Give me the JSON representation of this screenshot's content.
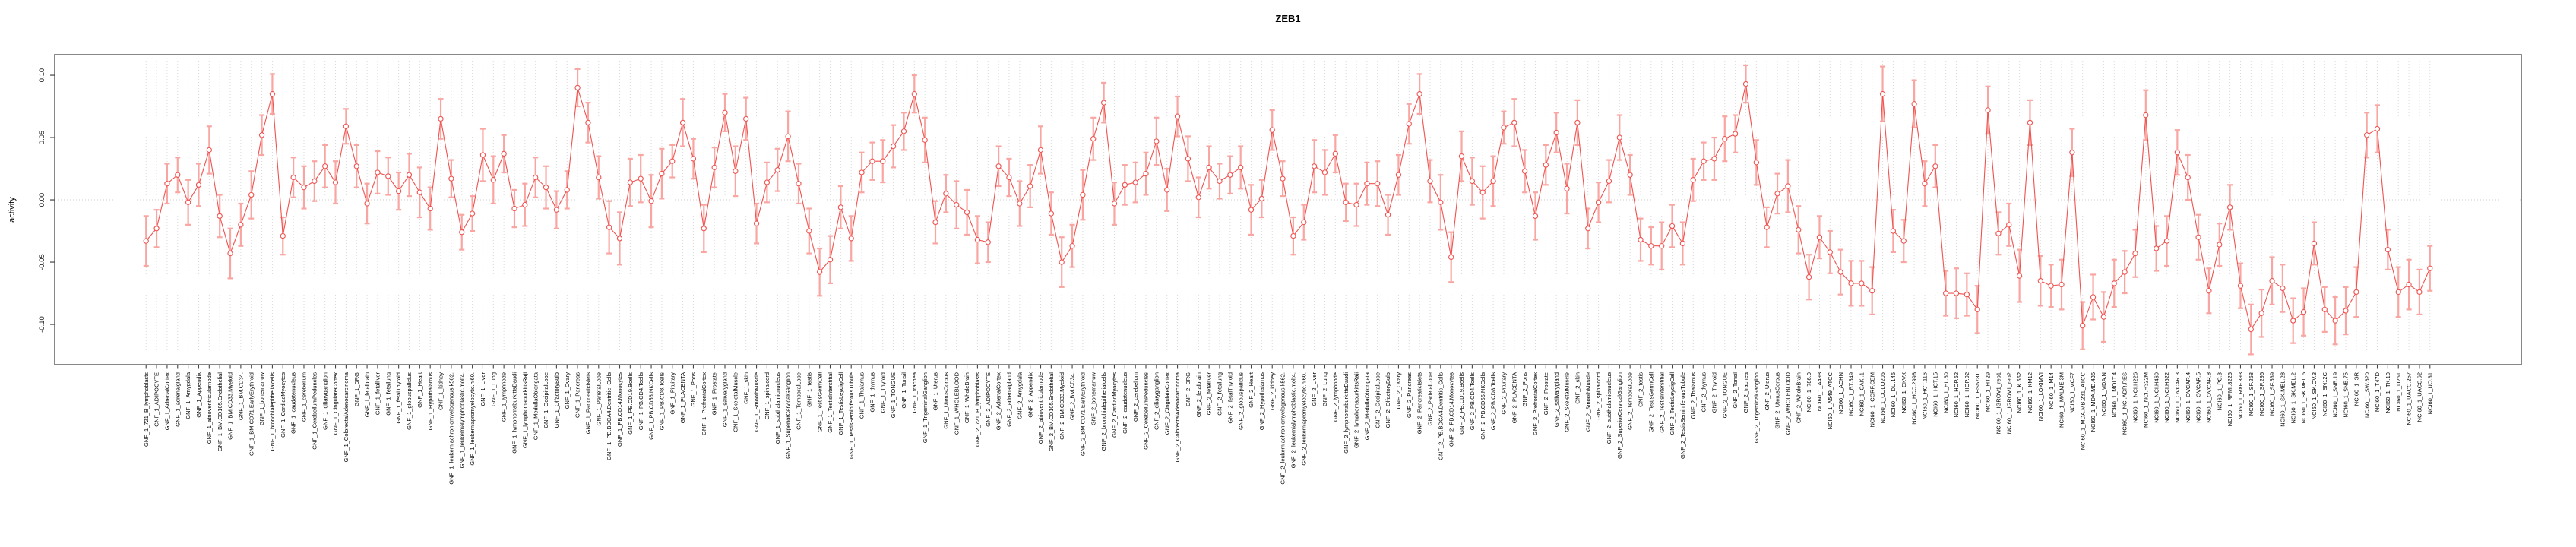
{
  "title": "ZEB1",
  "chart_data": {
    "type": "line",
    "title": "ZEB1",
    "ylabel": "activity",
    "xlabel": "",
    "ylim": [
      -0.1323,
      0.1165
    ],
    "yticks": [
      -0.1,
      -0.05,
      0.0,
      0.05,
      0.1
    ],
    "ytick_labels": [
      "-0.10",
      "-0.05",
      "0.00",
      "0.05",
      "0.10"
    ],
    "legend": "none",
    "grid": "vertical dotted gridline at every category; horizontal dotted line at 0",
    "marker": "open-circle",
    "error_bars": true,
    "colors": {
      "series": "#ef5350",
      "error_bar": "#f9a6a2",
      "grid_line": "#d9d9d9",
      "zero_line": "#cccccc",
      "box_border": "#7a7a7a",
      "tick_text": "#1a1a1a"
    },
    "x_groups": [
      {
        "prefix": "GNF_1_",
        "names": [
          "721_B_lymphoblasts",
          "ADIPOCYTE",
          "AdrenalCortex",
          "adrenalgland",
          "Amygdala",
          "Appendix",
          "atrioventricularnode",
          "BM.CD105.Endothelial",
          "BM.CD33.Myeloid",
          "BM.CD34.",
          "BM.CD71.EarlyErythroid",
          "bonemarrow",
          "bronchialepithelialcells",
          "CardiacMyocytes",
          "caudatenucleus",
          "cerebellum",
          "CerebellumPeduncles",
          "ciliaryganglion",
          "CingulateCortex",
          "ColorectalAdenocarcinoma",
          "DRG",
          "fetalbrain",
          "fetalliver",
          "fetallung",
          "fetalThyroid",
          "globuspallidus",
          "Heart",
          "Hypothalamus",
          "kidney",
          "leukemiachronicmyelogenous.k562.",
          "leukemialymphoblastic.molt4.",
          "leukemiapromyelocytic.hl60.",
          "Liver",
          "Lung",
          "lymphnode",
          "lymphomaburkittsDaudi",
          "lymphomaburkittsRaji",
          "MedullaOblongata",
          "OccipitalLobe",
          "OlfactoryBulb",
          "Ovary",
          "Pancreas",
          "PancreaticIslets",
          "ParietalLobe",
          "PB.BDCA4.Dentritic_Cells",
          "PB.CD14.Monocytes",
          "PB.CD19.Bcells",
          "PB.CD4.Tcells",
          "PB.CD56.NKCells",
          "PB.CD8.Tcells",
          "Pituitary",
          "PLACENTA",
          "Pons",
          "PrefrontalCortex",
          "Prostate",
          "salivarygland",
          "SkeletalMuscle",
          "skin",
          "SmoothMuscle",
          "spinalcord",
          "subthalamicnucleus",
          "SuperiorCervicalGanglion",
          "TemporalLobe",
          "testis",
          "TestisGermCell",
          "TestisInterstitial",
          "TestisLeydigCell",
          "TestisSeminiferousTubule",
          "Thalamus",
          "thymus",
          "Thyroid",
          "TONGUE",
          "Tonsil",
          "trachea",
          "TrigeminalGanglion",
          "Uterus",
          "UterusCorpus",
          "WHOLEBLOOD",
          "WholeBrain"
        ]
      },
      {
        "prefix": "GNF_2_",
        "names": [
          "721_B_lymphoblasts",
          "ADIPOCYTE",
          "AdrenalCortex",
          "adrenalgland",
          "Amygdala",
          "Appendix",
          "atrioventricularnode",
          "BM.CD105.Endothelial",
          "BM.CD33.Myeloid",
          "BM.CD34.",
          "BM.CD71.EarlyErythroid",
          "bonemarrow",
          "bronchialepithelialcells",
          "CardiacMyocytes",
          "caudatenucleus",
          "cerebellum",
          "CerebellumPeduncles",
          "ciliaryganglion",
          "CingulateCortex",
          "ColorectalAdenocarcinoma",
          "DRG",
          "fetalbrain",
          "fetalliver",
          "fetallung",
          "fetalThyroid",
          "globuspallidus",
          "Heart",
          "Hypothalamus",
          "kidney",
          "leukemiachronicmyelogenous.k562.",
          "leukemialymphoblastic.molt4.",
          "leukemiapromyelocytic.hl60.",
          "Liver",
          "Lung",
          "lymphnode",
          "lymphomaburkittsDaudi",
          "lymphomaburkittsRaji",
          "MedullaOblongata",
          "OccipitalLobe",
          "OlfactoryBulb",
          "Ovary",
          "Pancreas",
          "PancreaticIslets",
          "ParietalLobe",
          "PB.BDCA4.Dentritic_Cells",
          "PB.CD14.Monocytes",
          "PB.CD19.Bcells",
          "PB.CD4.Tcells",
          "PB.CD56.NKCells",
          "PB.CD8.Tcells",
          "Pituitary",
          "PLACENTA",
          "Pons",
          "PrefrontalCortex",
          "Prostate",
          "salivarygland",
          "SkeletalMuscle",
          "skin",
          "SmoothMuscle",
          "spinalcord",
          "subthalamicnucleus",
          "SuperiorCervicalGanglion",
          "TemporalLobe",
          "testis",
          "TestisGermCell",
          "TestisInterstitial",
          "TestisLeydigCell",
          "TestisSeminiferousTubule",
          "Thalamus",
          "thymus",
          "Thyroid",
          "TONGUE",
          "Tonsil",
          "trachea",
          "TrigeminalGanglion",
          "Uterus",
          "UterusCorpus",
          "WHOLEBLOOD",
          "WholeBrain"
        ]
      },
      {
        "prefix": "NCI60_1_",
        "names": [
          "786.0",
          "A498",
          "A549_ATCC",
          "ACHN",
          "BT.549",
          "CAKI.1",
          "CCRF.CEM",
          "COLO205",
          "DU.145",
          "EKVX",
          "HCC.2998",
          "HCT.116",
          "HCT.15",
          "HL.60",
          "HOP.62",
          "HOP.92",
          "HS578T",
          "HT29",
          "IGROV1_rep1",
          "IGROV1_rep2",
          "K.562",
          "KM12",
          "LOXIMVI",
          "M14",
          "MALME.3M",
          "MCF7",
          "MDA.MB.231_ATCC",
          "MDA.MB.435",
          "MDA.N",
          "MOLT.4",
          "NCI.ADR.RES",
          "NCI.H226",
          "NCI.H322M",
          "NCI.H460",
          "NCI.H522",
          "OVCAR.3",
          "OVCAR.4",
          "OVCAR.5",
          "OVCAR.8",
          "PC.3",
          "RPMI.8226",
          "RXF.393",
          "SF.268",
          "SF.295",
          "SF.539",
          "SK.MEL.28",
          "SK.MEL.2",
          "SK.MEL.5",
          "SK.OV.3",
          "SN12C",
          "SNB.19",
          "SNB.75",
          "SR",
          "SW.620",
          "T47D",
          "TK.10",
          "U251",
          "UACC.257",
          "UACC.62",
          "UO.31"
        ]
      }
    ],
    "values": [
      -0.033,
      -0.023,
      0.013,
      0.02,
      -0.002,
      0.012,
      0.04,
      -0.013,
      -0.043,
      -0.02,
      0.004,
      0.052,
      0.085,
      -0.029,
      0.018,
      0.01,
      0.015,
      0.027,
      0.014,
      0.059,
      0.027,
      -0.003,
      0.022,
      0.019,
      0.007,
      0.02,
      0.006,
      -0.007,
      0.065,
      0.017,
      -0.026,
      -0.011,
      0.036,
      0.016,
      0.037,
      -0.007,
      -0.004,
      0.018,
      0.01,
      -0.008,
      0.008,
      0.09,
      0.062,
      0.018,
      -0.022,
      -0.031,
      0.014,
      0.017,
      -0.001,
      0.021,
      0.031,
      0.062,
      0.033,
      -0.023,
      0.026,
      0.07,
      0.023,
      0.065,
      -0.019,
      0.014,
      0.024,
      0.051,
      0.013,
      -0.025,
      -0.058,
      -0.048,
      -0.006,
      -0.031,
      0.022,
      0.031,
      0.031,
      0.043,
      0.055,
      0.085,
      0.048,
      -0.018,
      0.005,
      -0.004,
      -0.01,
      -0.032,
      -0.034,
      0.027,
      0.018,
      -0.003,
      0.011,
      0.04,
      -0.011,
      -0.05,
      -0.037,
      0.004,
      0.049,
      0.078,
      -0.003,
      0.012,
      0.014,
      0.021,
      0.047,
      0.008,
      0.067,
      0.033,
      0.002,
      0.026,
      0.015,
      0.02,
      0.026,
      -0.008,
      0.001,
      0.056,
      0.017,
      -0.029,
      -0.018,
      0.027,
      0.022,
      0.037,
      -0.002,
      -0.004,
      0.013,
      0.013,
      -0.012,
      0.02,
      0.061,
      0.085,
      0.015,
      -0.002,
      -0.046,
      0.035,
      0.015,
      0.006,
      0.015,
      0.058,
      0.062,
      0.023,
      -0.013,
      0.028,
      0.054,
      0.009,
      0.062,
      -0.023,
      -0.002,
      0.015,
      0.05,
      0.02,
      -0.032,
      -0.037,
      -0.037,
      -0.021,
      -0.035,
      0.016,
      0.031,
      0.033,
      0.049,
      0.053,
      0.093,
      0.03,
      -0.022,
      0.005,
      0.011,
      -0.024,
      -0.062,
      -0.03,
      -0.042,
      -0.058,
      -0.067,
      -0.067,
      -0.073,
      0.085,
      -0.025,
      -0.033,
      0.077,
      0.013,
      0.027,
      -0.075,
      -0.075,
      -0.076,
      -0.088,
      0.072,
      -0.027,
      -0.02,
      -0.061,
      0.062,
      -0.065,
      -0.069,
      -0.068,
      0.038,
      -0.101,
      -0.078,
      -0.094,
      -0.067,
      -0.058,
      -0.043,
      0.068,
      -0.039,
      -0.033,
      0.038,
      0.018,
      -0.03,
      -0.073,
      -0.036,
      -0.006,
      -0.069,
      -0.104,
      -0.091,
      -0.065,
      -0.071,
      -0.097,
      -0.09,
      -0.035,
      -0.088,
      -0.097,
      -0.089,
      -0.074,
      0.052,
      0.057,
      -0.04,
      -0.074,
      -0.068,
      -0.074,
      -0.055
    ],
    "errors": [
      0.02,
      0.015,
      0.016,
      0.014,
      0.018,
      0.017,
      0.019,
      0.017,
      0.02,
      0.017,
      0.019,
      0.016,
      0.016,
      0.015,
      0.016,
      0.017,
      0.016,
      0.017,
      0.017,
      0.014,
      0.017,
      0.016,
      0.017,
      0.015,
      0.015,
      0.017,
      0.02,
      0.017,
      0.016,
      0.015,
      0.014,
      0.014,
      0.021,
      0.019,
      0.015,
      0.015,
      0.017,
      0.016,
      0.017,
      0.015,
      0.015,
      0.015,
      0.016,
      0.017,
      0.021,
      0.021,
      0.019,
      0.019,
      0.021,
      0.02,
      0.013,
      0.019,
      0.016,
      0.019,
      0.016,
      0.015,
      0.02,
      0.017,
      0.016,
      0.016,
      0.017,
      0.02,
      0.016,
      0.018,
      0.019,
      0.019,
      0.017,
      0.018,
      0.016,
      0.015,
      0.017,
      0.017,
      0.015,
      0.015,
      0.018,
      0.017,
      0.015,
      0.019,
      0.018,
      0.019,
      0.016,
      0.016,
      0.015,
      0.018,
      0.017,
      0.019,
      0.017,
      0.02,
      0.017,
      0.02,
      0.017,
      0.016,
      0.017,
      0.016,
      0.016,
      0.017,
      0.019,
      0.017,
      0.016,
      0.018,
      0.016,
      0.017,
      0.014,
      0.015,
      0.017,
      0.02,
      0.015,
      0.016,
      0.014,
      0.015,
      0.014,
      0.021,
      0.018,
      0.015,
      0.015,
      0.017,
      0.017,
      0.018,
      0.016,
      0.016,
      0.016,
      0.016,
      0.017,
      0.022,
      0.02,
      0.02,
      0.019,
      0.021,
      0.02,
      0.013,
      0.019,
      0.017,
      0.019,
      0.016,
      0.016,
      0.02,
      0.018,
      0.016,
      0.016,
      0.017,
      0.018,
      0.016,
      0.017,
      0.015,
      0.019,
      0.017,
      0.017,
      0.017,
      0.015,
      0.017,
      0.018,
      0.015,
      0.015,
      0.018,
      0.016,
      0.016,
      0.021,
      0.019,
      0.018,
      0.017,
      0.017,
      0.018,
      0.018,
      0.018,
      0.019,
      0.022,
      0.017,
      0.017,
      0.019,
      0.018,
      0.017,
      0.018,
      0.02,
      0.017,
      0.019,
      0.019,
      0.017,
      0.017,
      0.021,
      0.018,
      0.02,
      0.017,
      0.02,
      0.019,
      0.019,
      0.018,
      0.02,
      0.019,
      0.017,
      0.019,
      0.02,
      0.018,
      0.02,
      0.018,
      0.018,
      0.018,
      0.018,
      0.017,
      0.018,
      0.018,
      0.02,
      0.019,
      0.019,
      0.019,
      0.018,
      0.019,
      0.017,
      0.018,
      0.019,
      0.019,
      0.02,
      0.018,
      0.019,
      0.016,
      0.02,
      0.02,
      0.018,
      0.018
    ]
  }
}
